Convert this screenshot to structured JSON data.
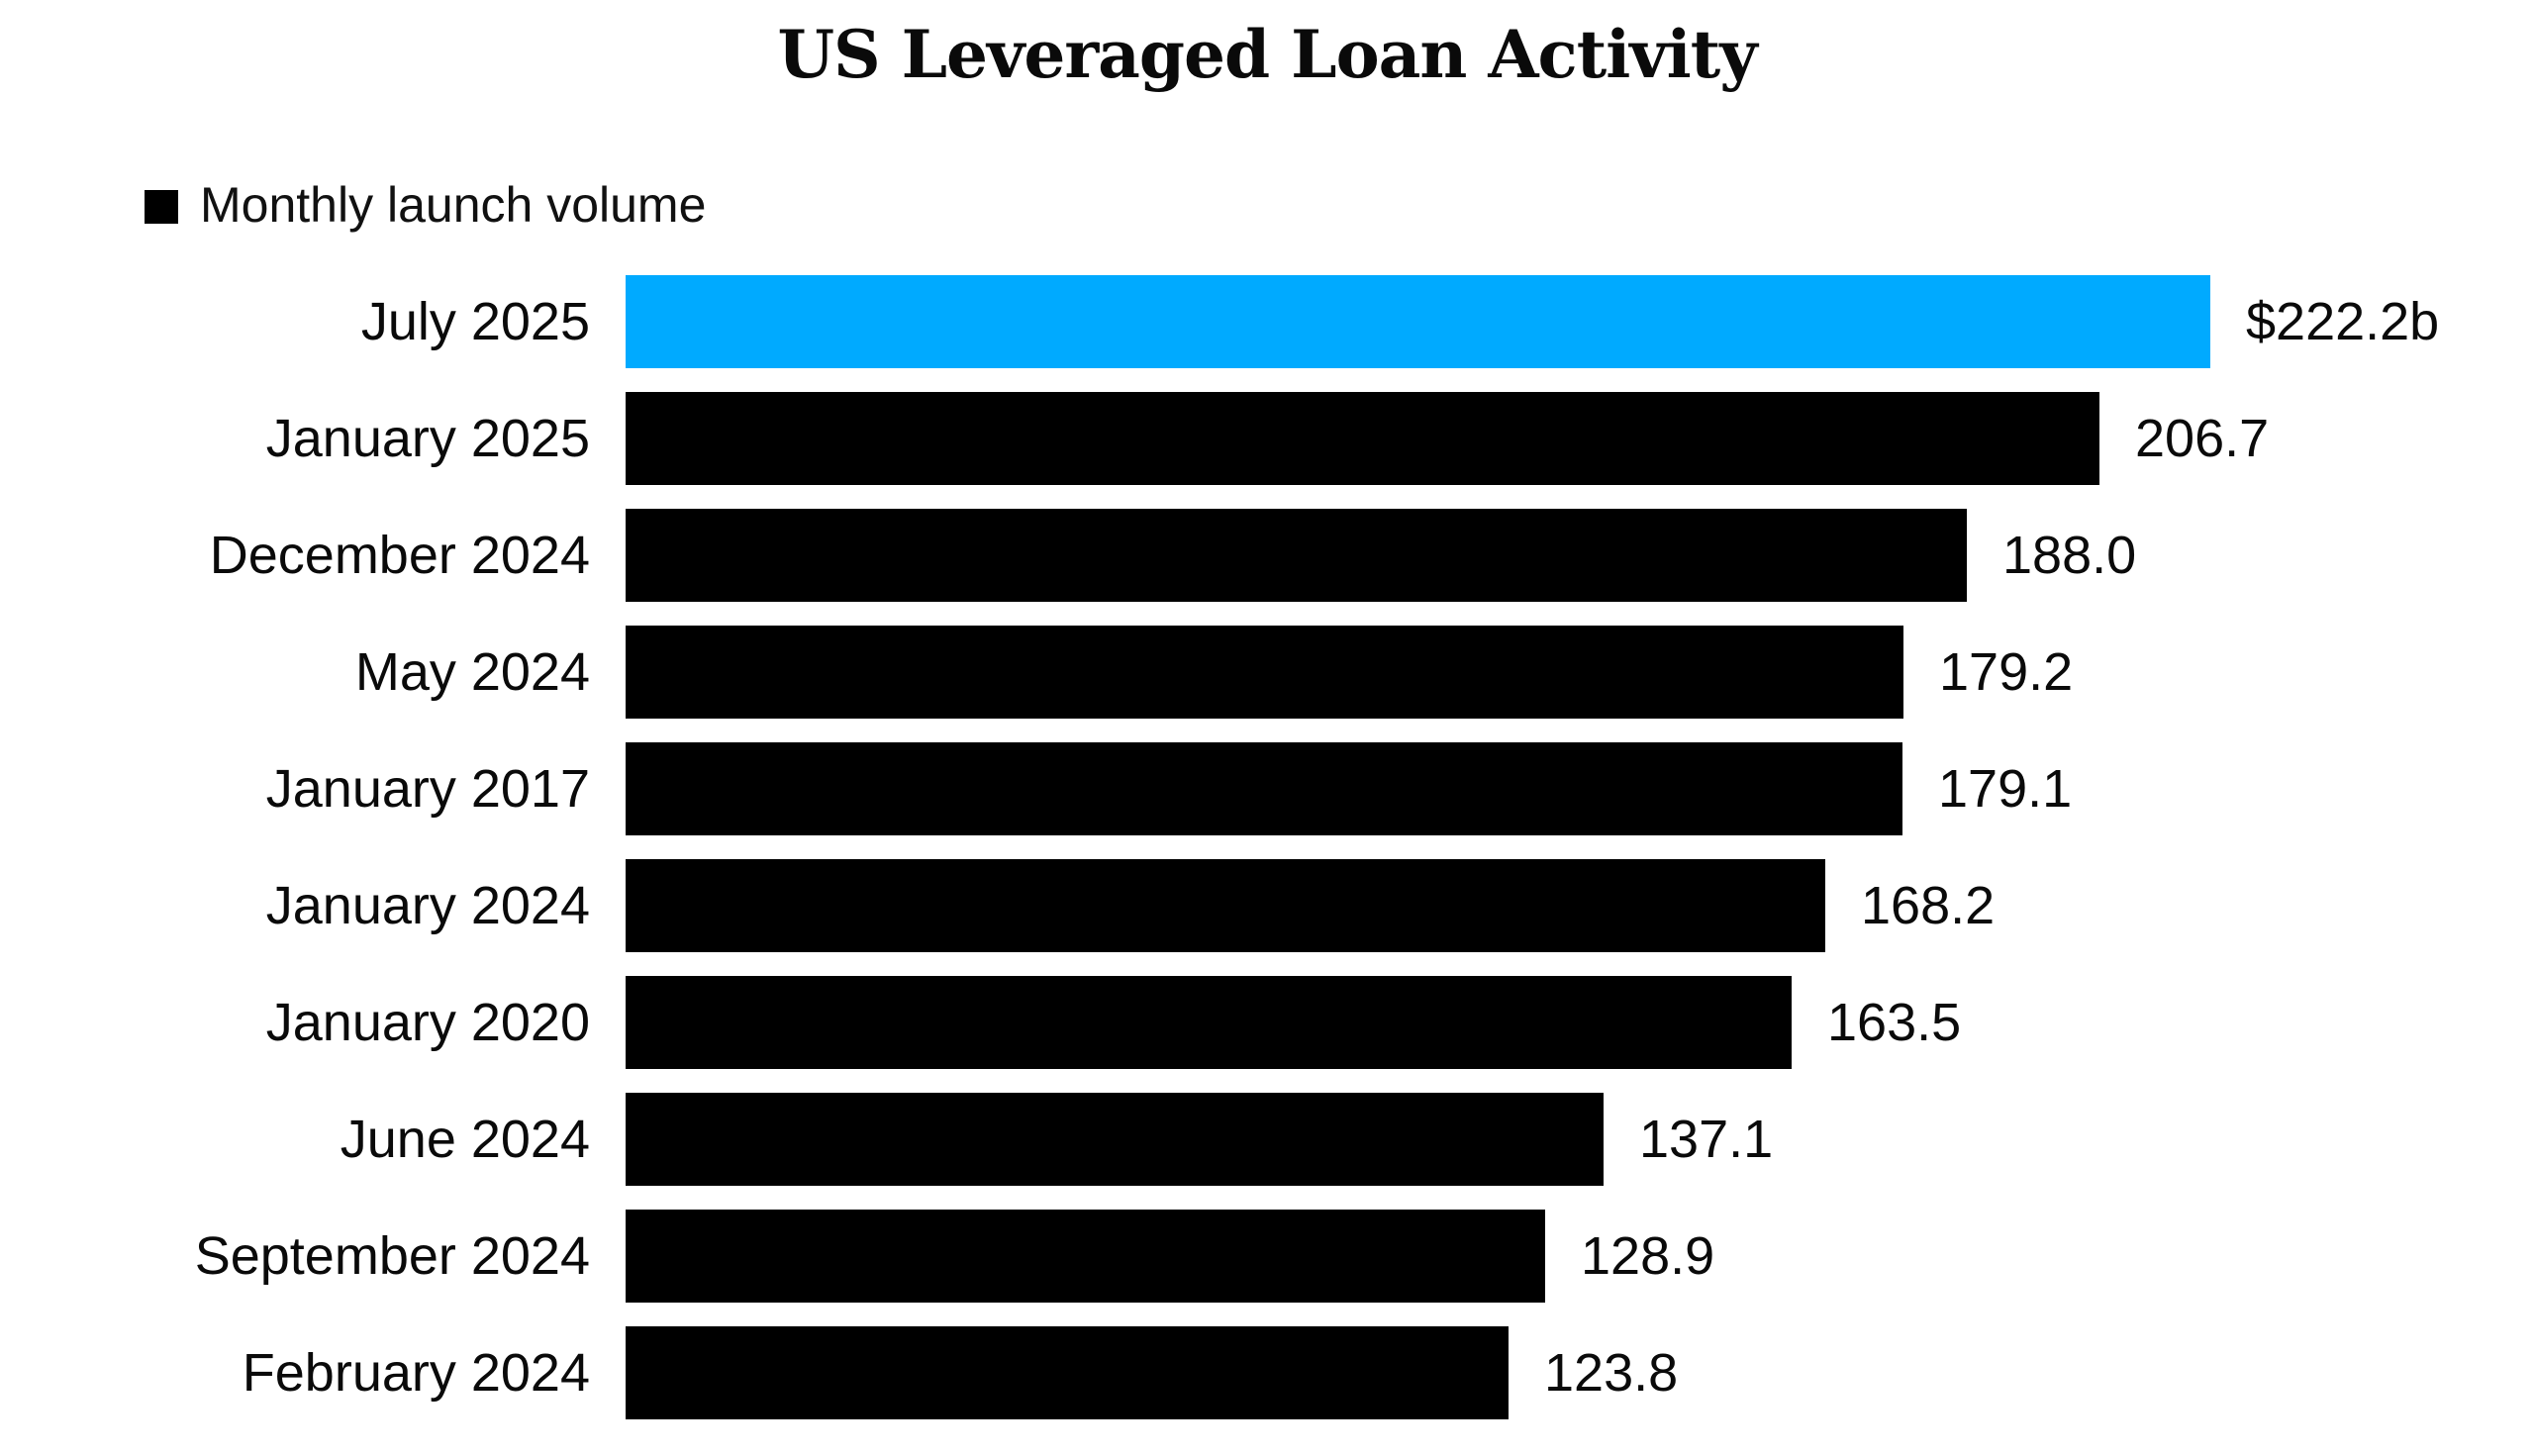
{
  "title": "US Leveraged Loan Activity",
  "legend": {
    "swatch_color": "#000000",
    "label": "Monthly launch volume"
  },
  "colors": {
    "bar_default": "#000000",
    "bar_highlight": "#00AAFF",
    "background": "#ffffff",
    "text": "#0a0a0a"
  },
  "chart_data": {
    "type": "bar",
    "orientation": "horizontal",
    "title": "US Leveraged Loan Activity",
    "legend_entries": [
      "Monthly launch volume"
    ],
    "legend_position": "top-left",
    "grid": false,
    "xlim": [
      0,
      222.2
    ],
    "categories": [
      "July 2025",
      "January 2025",
      "December 2024",
      "May 2024",
      "January 2017",
      "January 2024",
      "January 2020",
      "June 2024",
      "September 2024",
      "February 2024"
    ],
    "values": [
      222.2,
      206.7,
      188.0,
      179.2,
      179.1,
      168.2,
      163.5,
      137.1,
      128.9,
      123.8
    ],
    "value_labels": [
      "$222.2b",
      "206.7",
      "188.0",
      "179.2",
      "179.1",
      "168.2",
      "163.5",
      "137.1",
      "128.9",
      "123.8"
    ],
    "highlighted_index": 0,
    "units": "billions USD"
  }
}
